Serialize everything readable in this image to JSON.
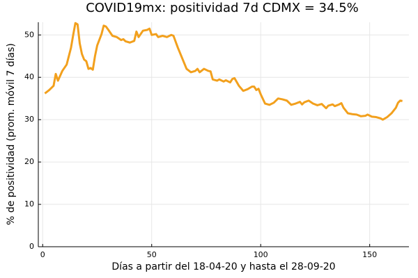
{
  "chart_data": {
    "type": "line",
    "title": "COVID19mx: positividad 7d CDMX = 34.5%",
    "x_label": "Días a partir del 18-04-20 y hasta el 28-09-20",
    "y_label": "% de positividad (prom. móvil 7 días)",
    "x": [
      1,
      3,
      5,
      6,
      7,
      9,
      11,
      13,
      14,
      15,
      16,
      17,
      18,
      19,
      20,
      21,
      22,
      23,
      24,
      25,
      27,
      28,
      29,
      30,
      32,
      34,
      36,
      37,
      38,
      40,
      42,
      43,
      44,
      46,
      48,
      49,
      50,
      52,
      53,
      55,
      57,
      59,
      60,
      62,
      64,
      66,
      68,
      70,
      71,
      72,
      74,
      76,
      77,
      78,
      80,
      81,
      83,
      84,
      86,
      87,
      88,
      90,
      92,
      94,
      96,
      97,
      98,
      99,
      100,
      102,
      104,
      106,
      108,
      110,
      112,
      114,
      116,
      118,
      119,
      120,
      122,
      124,
      126,
      128,
      130,
      131,
      133,
      134,
      136,
      137,
      138,
      140,
      142,
      144,
      146,
      148,
      149,
      151,
      153,
      155,
      156,
      158,
      160,
      162,
      163,
      164,
      165
    ],
    "series": [
      {
        "name": "positividad",
        "color": "#f2a01d",
        "values": [
          36.2,
          37,
          38,
          40.8,
          39.2,
          41.5,
          43,
          47,
          50,
          52.8,
          52.5,
          48,
          45.5,
          44.2,
          43.8,
          42,
          42.2,
          41.8,
          45,
          47.5,
          50.2,
          52.2,
          52,
          51.3,
          49.8,
          49.5,
          48.8,
          49,
          48.5,
          48.2,
          48.6,
          50.8,
          49.5,
          51,
          51.2,
          51.5,
          50,
          50.2,
          49.5,
          49.8,
          49.5,
          50,
          49.8,
          47,
          44.5,
          42,
          41.2,
          41.5,
          42,
          41.2,
          42,
          41.5,
          41.4,
          39.5,
          39.2,
          39.5,
          39,
          39.3,
          38.8,
          39.6,
          39.8,
          38,
          36.8,
          37.2,
          37.8,
          37.8,
          37,
          37.3,
          36,
          33.8,
          33.5,
          34,
          35,
          34.8,
          34.5,
          33.5,
          33.8,
          34.2,
          33.6,
          34.1,
          34.5,
          33.8,
          33.4,
          33.7,
          32.7,
          33.3,
          33.6,
          33.2,
          33.6,
          33.9,
          32.8,
          31.5,
          31.3,
          31.2,
          30.8,
          30.9,
          31.2,
          30.7,
          30.6,
          30.3,
          30,
          30.6,
          31.5,
          32.8,
          34,
          34.5,
          34.4
        ]
      }
    ],
    "xlim": [
      -2,
      168
    ],
    "ylim": [
      0,
      53
    ],
    "xticks": [
      0,
      50,
      100,
      150
    ],
    "yticks": [
      0,
      10,
      20,
      30,
      40,
      50
    ],
    "grid": true
  }
}
